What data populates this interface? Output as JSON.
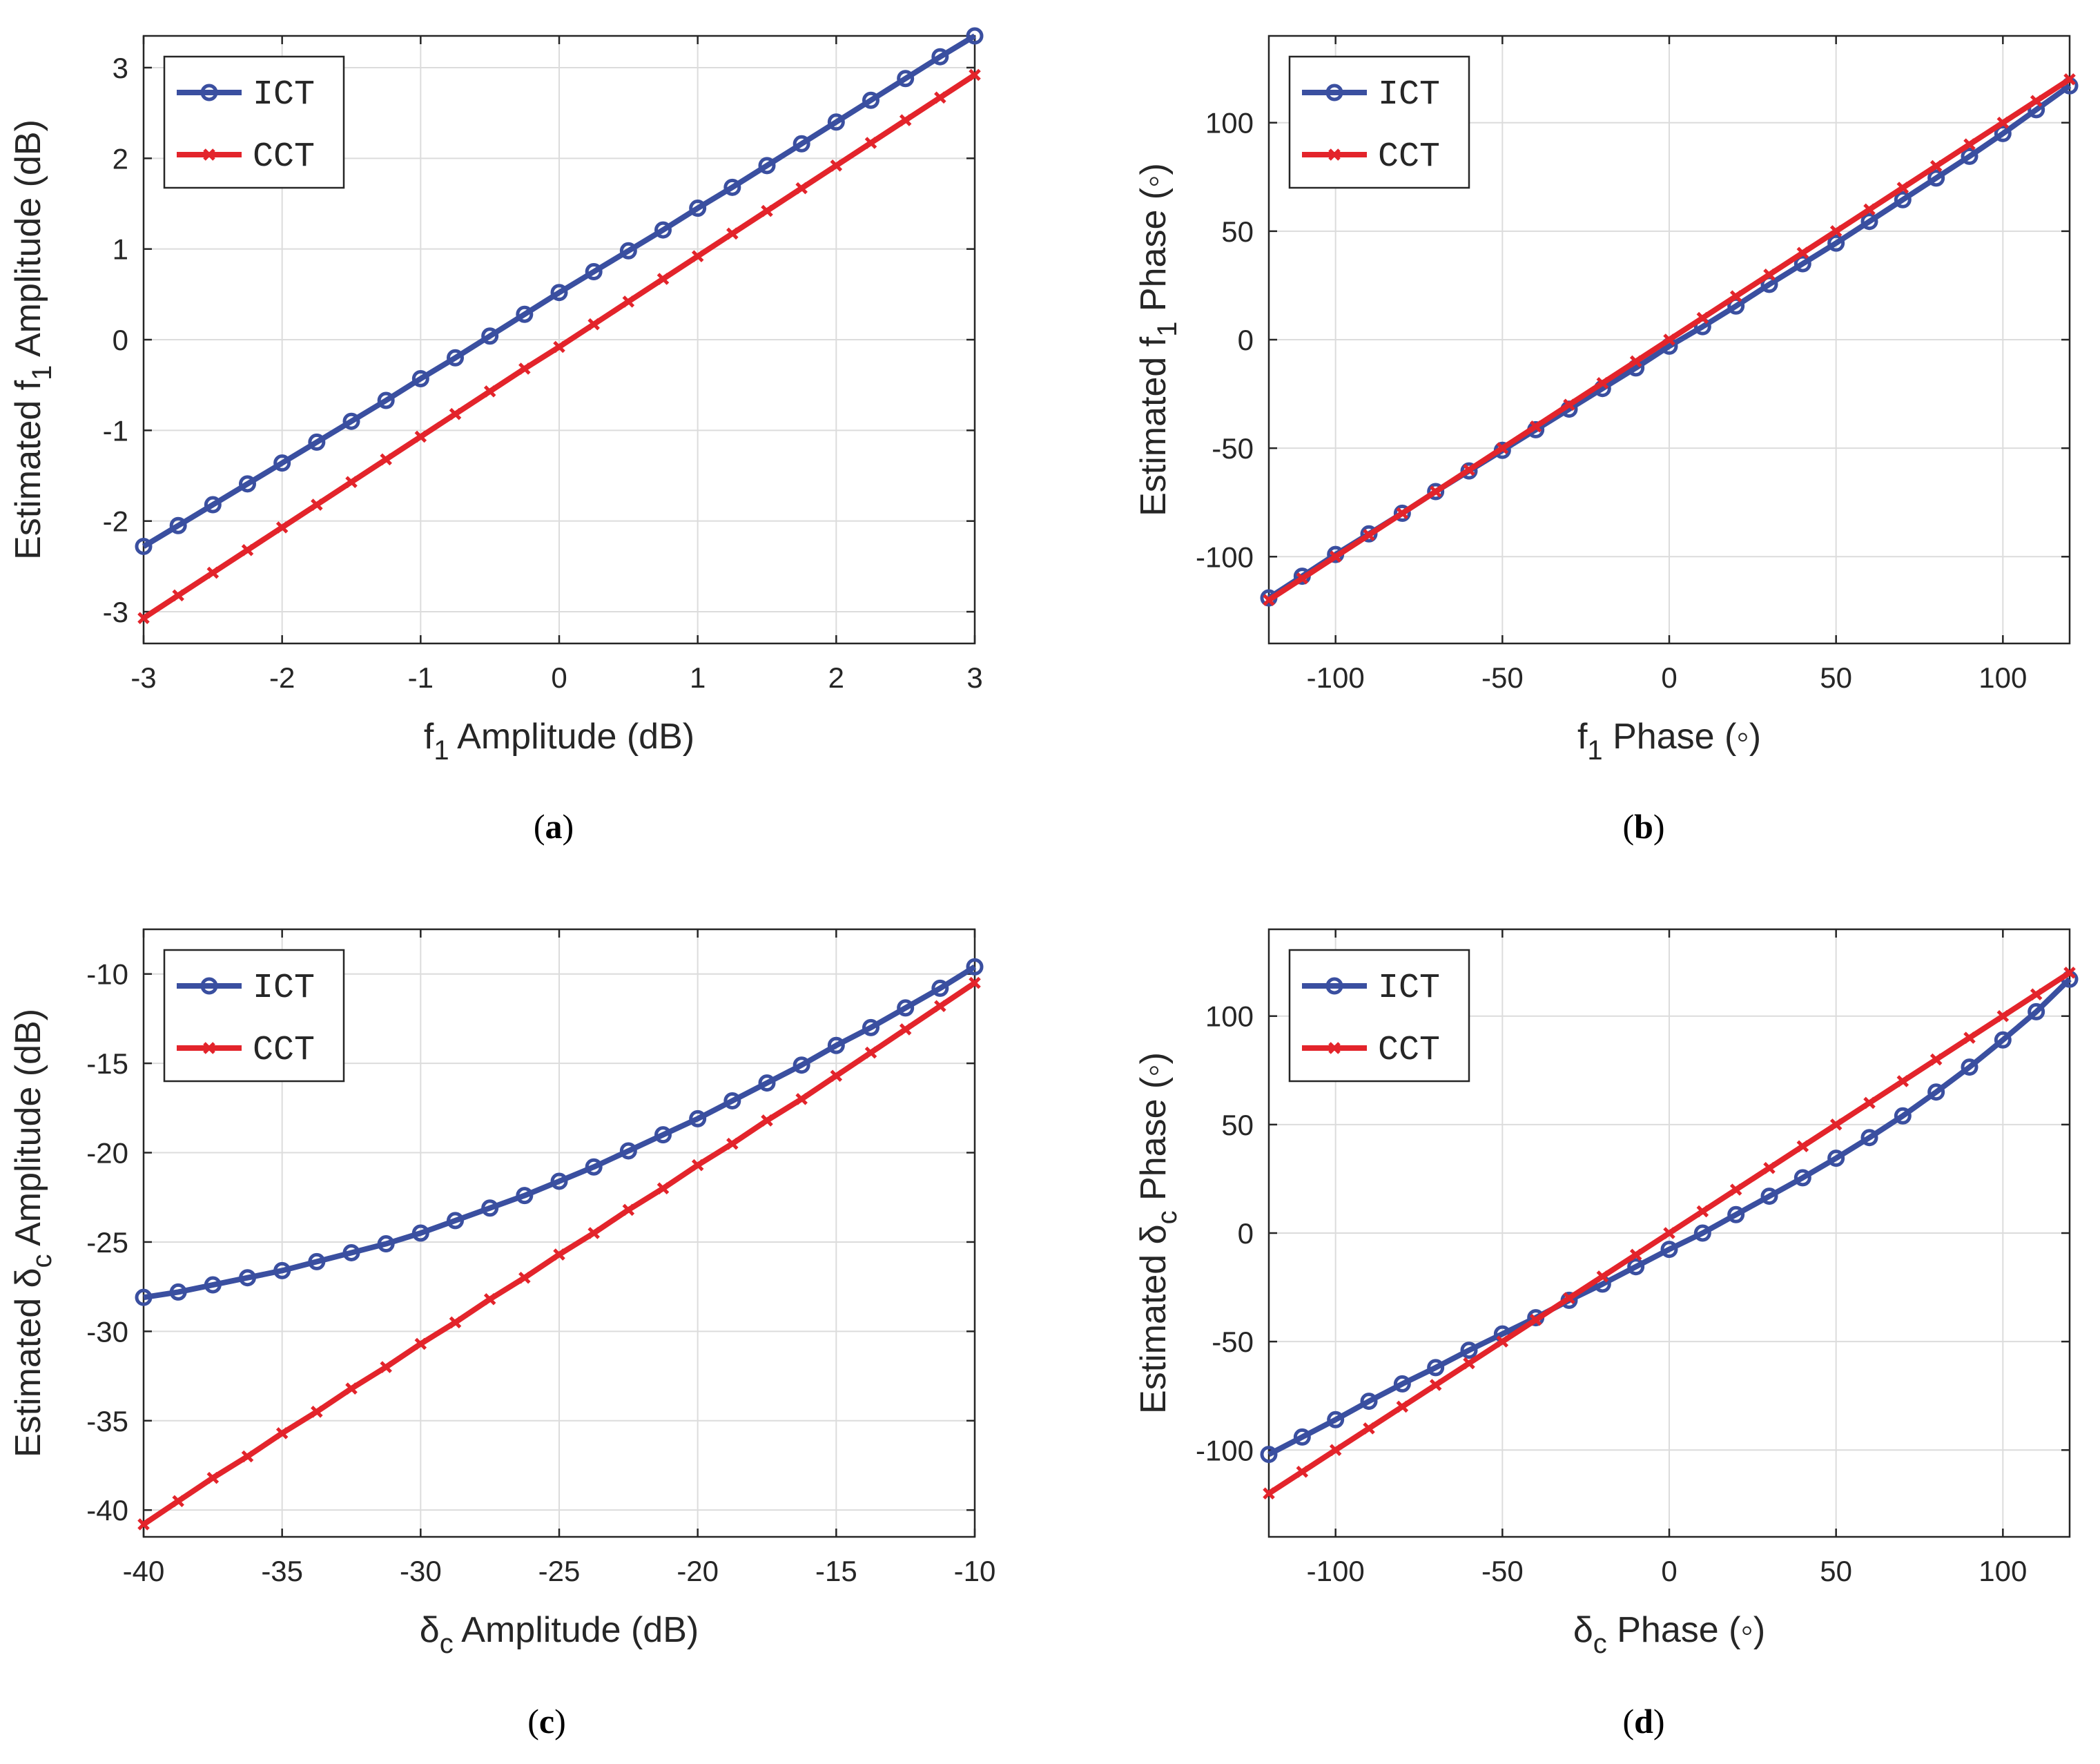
{
  "colors": {
    "ict": "#3a4fa0",
    "cct": "#e3242b",
    "grid": "#dcdcdc",
    "axis": "#262626"
  },
  "chart_data": [
    {
      "id": "a",
      "type": "line",
      "caption": "a",
      "xlabel": "f",
      "xlabel_sub": "1",
      "xlabel_rest": " Amplitude (dB)",
      "ylabel": "Estimated f",
      "ylabel_sub": "1",
      "ylabel_rest": "  Amplitude (dB)",
      "xlim": [
        -3,
        3
      ],
      "ylim": [
        -3.35,
        3.35
      ],
      "xticks": [
        -3,
        -2,
        -1,
        0,
        1,
        2,
        3
      ],
      "xtick_labels": [
        "-3",
        "-2",
        "-1",
        "0",
        "1",
        "2",
        "3"
      ],
      "yticks": [
        -3,
        -2,
        -1,
        0,
        1,
        2,
        3
      ],
      "ytick_labels": [
        "-3",
        "-2",
        "-1",
        "0",
        "1",
        "2",
        "3"
      ],
      "legend": [
        "ICT",
        "CCT"
      ],
      "legend_position": "top-left",
      "x": [
        -3,
        -2.75,
        -2.5,
        -2.25,
        -2,
        -1.75,
        -1.5,
        -1.25,
        -1,
        -0.75,
        -0.5,
        -0.25,
        0,
        0.25,
        0.5,
        0.75,
        1,
        1.25,
        1.5,
        1.75,
        2,
        2.25,
        2.5,
        2.75,
        3
      ],
      "series": [
        {
          "name": "ICT",
          "values": [
            -2.28,
            -2.05,
            -1.82,
            -1.59,
            -1.36,
            -1.13,
            -0.9,
            -0.67,
            -0.43,
            -0.2,
            0.04,
            0.28,
            0.52,
            0.75,
            0.98,
            1.21,
            1.45,
            1.68,
            1.92,
            2.16,
            2.4,
            2.64,
            2.88,
            3.12,
            3.35
          ]
        },
        {
          "name": "CCT",
          "values": [
            -3.07,
            -2.82,
            -2.57,
            -2.32,
            -2.07,
            -1.82,
            -1.57,
            -1.32,
            -1.07,
            -0.82,
            -0.57,
            -0.32,
            -0.08,
            0.17,
            0.42,
            0.67,
            0.92,
            1.17,
            1.42,
            1.67,
            1.92,
            2.17,
            2.42,
            2.67,
            2.92
          ]
        }
      ]
    },
    {
      "id": "b",
      "type": "line",
      "caption": "b",
      "xlabel": "f",
      "xlabel_sub": "1",
      "xlabel_rest": " Phase (◦)",
      "ylabel": "Estimated f",
      "ylabel_sub": "1",
      "ylabel_rest": "  Phase (◦)",
      "xlim": [
        -120,
        120
      ],
      "ylim": [
        -140,
        140
      ],
      "xticks": [
        -100,
        -50,
        0,
        50,
        100
      ],
      "xtick_labels": [
        "-100",
        "-50",
        "0",
        "50",
        "100"
      ],
      "yticks": [
        -100,
        -50,
        0,
        50,
        100
      ],
      "ytick_labels": [
        "-100",
        "-50",
        "0",
        "50",
        "100"
      ],
      "legend": [
        "ICT",
        "CCT"
      ],
      "legend_position": "top-left",
      "x": [
        -120,
        -110,
        -100,
        -90,
        -80,
        -70,
        -60,
        -50,
        -40,
        -30,
        -20,
        -10,
        0,
        10,
        20,
        30,
        40,
        50,
        60,
        70,
        80,
        90,
        100,
        110,
        120
      ],
      "series": [
        {
          "name": "ICT",
          "values": [
            -119,
            -109,
            -99,
            -89.5,
            -80,
            -70,
            -60.5,
            -51,
            -41.5,
            -32,
            -22.5,
            -13,
            -3,
            6,
            15.5,
            25.5,
            35,
            44.5,
            54.5,
            64.5,
            74.5,
            84.5,
            95,
            106,
            117
          ]
        },
        {
          "name": "CCT",
          "values": [
            -120,
            -110,
            -100,
            -90,
            -80,
            -70,
            -60,
            -50,
            -40,
            -30,
            -20,
            -10,
            0,
            10,
            20,
            30,
            40,
            50,
            60,
            70,
            80,
            90,
            100,
            110,
            120
          ]
        }
      ]
    },
    {
      "id": "c",
      "type": "line",
      "caption": "c",
      "xlabel": "δ",
      "xlabel_sub": "c",
      "xlabel_rest": " Amplitude (dB)",
      "ylabel": "Estimated δ",
      "ylabel_sub": "c",
      "ylabel_rest": " Amplitude (dB)",
      "xlim": [
        -40,
        -10
      ],
      "ylim": [
        -41.5,
        -7.5
      ],
      "xticks": [
        -40,
        -35,
        -30,
        -25,
        -20,
        -15,
        -10
      ],
      "xtick_labels": [
        "-40",
        "-35",
        "-30",
        "-25",
        "-20",
        "-15",
        "-10"
      ],
      "yticks": [
        -40,
        -35,
        -30,
        -25,
        -20,
        -15,
        -10
      ],
      "ytick_labels": [
        "-40",
        "-35",
        "-30",
        "-25",
        "-20",
        "-15",
        "-10"
      ],
      "legend": [
        "ICT",
        "CCT"
      ],
      "legend_position": "top-left",
      "x": [
        -40,
        -38.75,
        -37.5,
        -36.25,
        -35,
        -33.75,
        -32.5,
        -31.25,
        -30,
        -28.75,
        -27.5,
        -26.25,
        -25,
        -23.75,
        -22.5,
        -21.25,
        -20,
        -18.75,
        -17.5,
        -16.25,
        -15,
        -13.75,
        -12.5,
        -11.25,
        -10
      ],
      "series": [
        {
          "name": "ICT",
          "values": [
            -28.1,
            -27.8,
            -27.4,
            -27.0,
            -26.6,
            -26.1,
            -25.6,
            -25.1,
            -24.5,
            -23.8,
            -23.1,
            -22.4,
            -21.6,
            -20.8,
            -19.9,
            -19.0,
            -18.1,
            -17.1,
            -16.1,
            -15.1,
            -14.0,
            -13.0,
            -11.9,
            -10.8,
            -9.6
          ]
        },
        {
          "name": "CCT",
          "values": [
            -40.8,
            -39.5,
            -38.2,
            -37.0,
            -35.7,
            -34.5,
            -33.2,
            -32.0,
            -30.7,
            -29.5,
            -28.2,
            -27.0,
            -25.7,
            -24.5,
            -23.2,
            -22.0,
            -20.7,
            -19.5,
            -18.2,
            -17.0,
            -15.7,
            -14.4,
            -13.1,
            -11.8,
            -10.5
          ]
        }
      ]
    },
    {
      "id": "d",
      "type": "line",
      "caption": "d",
      "xlabel": "δ",
      "xlabel_sub": "c",
      "xlabel_rest": " Phase (◦)",
      "ylabel": "Estimated δ",
      "ylabel_sub": "c",
      "ylabel_rest": "  Phase (◦)",
      "xlim": [
        -120,
        120
      ],
      "ylim": [
        -140,
        140
      ],
      "xticks": [
        -100,
        -50,
        0,
        50,
        100
      ],
      "xtick_labels": [
        "-100",
        "-50",
        "0",
        "50",
        "100"
      ],
      "yticks": [
        -100,
        -50,
        0,
        50,
        100
      ],
      "ytick_labels": [
        "-100",
        "-50",
        "0",
        "50",
        "100"
      ],
      "legend": [
        "ICT",
        "CCT"
      ],
      "legend_position": "top-left",
      "x": [
        -120,
        -110,
        -100,
        -90,
        -80,
        -70,
        -60,
        -50,
        -40,
        -30,
        -20,
        -10,
        0,
        10,
        20,
        30,
        40,
        50,
        60,
        70,
        80,
        90,
        100,
        110,
        120
      ],
      "series": [
        {
          "name": "ICT",
          "values": [
            -102,
            -94,
            -86,
            -77.5,
            -69.5,
            -62,
            -54,
            -46.5,
            -39,
            -31,
            -23.5,
            -15.5,
            -7.5,
            0,
            8.5,
            17,
            25.5,
            34.5,
            44,
            54,
            65,
            76.5,
            89,
            102,
            117
          ]
        },
        {
          "name": "CCT",
          "values": [
            -120,
            -110,
            -100,
            -90,
            -80,
            -70,
            -60,
            -50,
            -40,
            -30,
            -20,
            -10,
            0,
            10,
            20,
            30,
            40,
            50,
            60,
            70,
            80,
            90,
            100,
            110,
            120
          ]
        }
      ]
    }
  ]
}
